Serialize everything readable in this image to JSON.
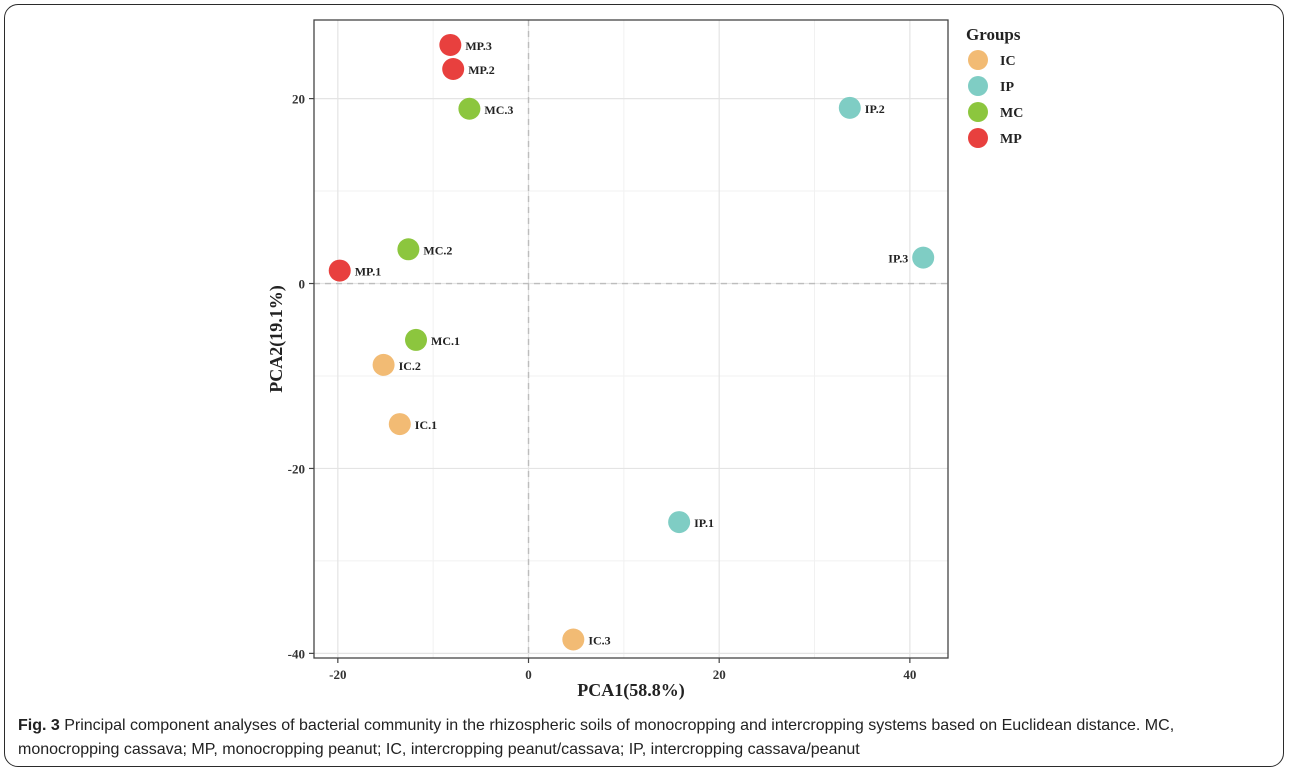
{
  "chart_data": {
    "type": "scatter",
    "xlabel": "PCA1(58.8%)",
    "ylabel": "PCA2(19.1%)",
    "xlim": [
      -22.5,
      44
    ],
    "ylim": [
      -40.5,
      28.5
    ],
    "xticks": [
      -20,
      0,
      20,
      40
    ],
    "yticks": [
      -40,
      -20,
      0,
      20
    ],
    "grid": true,
    "zero_lines": true,
    "legend": {
      "title": "Groups",
      "position": "right"
    },
    "series": [
      {
        "name": "IC",
        "color": "#F2BB74",
        "points": [
          {
            "label": "IC.1",
            "x": -13.5,
            "y": -15.2
          },
          {
            "label": "IC.2",
            "x": -15.2,
            "y": -8.8
          },
          {
            "label": "IC.3",
            "x": 4.7,
            "y": -38.5
          }
        ]
      },
      {
        "name": "IP",
        "color": "#7FCDC4",
        "points": [
          {
            "label": "IP.1",
            "x": 15.8,
            "y": -25.8
          },
          {
            "label": "IP.2",
            "x": 33.7,
            "y": 19.0
          },
          {
            "label": "IP.3",
            "x": 41.4,
            "y": 2.8
          }
        ]
      },
      {
        "name": "MC",
        "color": "#8CC63E",
        "points": [
          {
            "label": "MC.1",
            "x": -11.8,
            "y": -6.1
          },
          {
            "label": "MC.2",
            "x": -12.6,
            "y": 3.7
          },
          {
            "label": "MC.3",
            "x": -6.2,
            "y": 18.9
          }
        ]
      },
      {
        "name": "MP",
        "color": "#E8403E",
        "points": [
          {
            "label": "MP.1",
            "x": -19.8,
            "y": 1.4
          },
          {
            "label": "MP.2",
            "x": -7.9,
            "y": 23.2
          },
          {
            "label": "MP.3",
            "x": -8.2,
            "y": 25.8
          }
        ]
      }
    ]
  },
  "caption": {
    "label": "Fig. 3",
    "text": " Principal component analyses of bacterial community in the rhizospheric soils of monocropping and intercropping systems based on Euclidean distance. MC, monocropping cassava; MP, monocropping peanut; IC, intercropping peanut/cassava; IP, intercropping cassava/peanut"
  }
}
